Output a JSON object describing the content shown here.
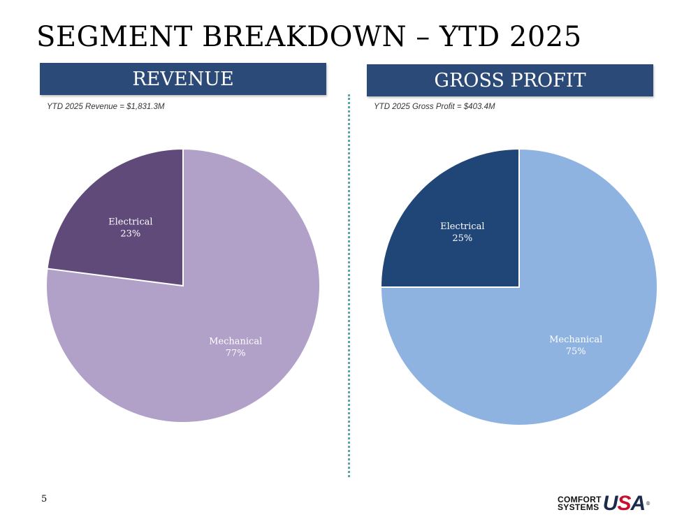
{
  "slide": {
    "title": "SEGMENT BREAKDOWN – YTD 2025",
    "page_number": "5"
  },
  "logo": {
    "line1": "COMFORT",
    "line2": "SYSTEMS",
    "mark_u": "U",
    "mark_s": "S",
    "mark_a": "A",
    "registered": "®"
  },
  "panels": {
    "revenue": {
      "header": "REVENUE",
      "subtitle": "YTD 2025 Revenue = $1,831.3M"
    },
    "gross_profit": {
      "header": "GROSS PROFIT",
      "subtitle": "YTD 2025 Gross Profit = $403.4M"
    }
  },
  "chart_data": [
    {
      "type": "pie",
      "title": "REVENUE",
      "slices": [
        {
          "label": "Mechanical",
          "value": 77,
          "display": "77%",
          "color": "#b1a1c8"
        },
        {
          "label": "Electrical",
          "value": 23,
          "display": "23%",
          "color": "#5f4a7a"
        }
      ]
    },
    {
      "type": "pie",
      "title": "GROSS PROFIT",
      "slices": [
        {
          "label": "Mechanical",
          "value": 75,
          "display": "75%",
          "color": "#8eb3e1"
        },
        {
          "label": "Electrical",
          "value": 25,
          "display": "25%",
          "color": "#1f4677"
        }
      ]
    }
  ]
}
